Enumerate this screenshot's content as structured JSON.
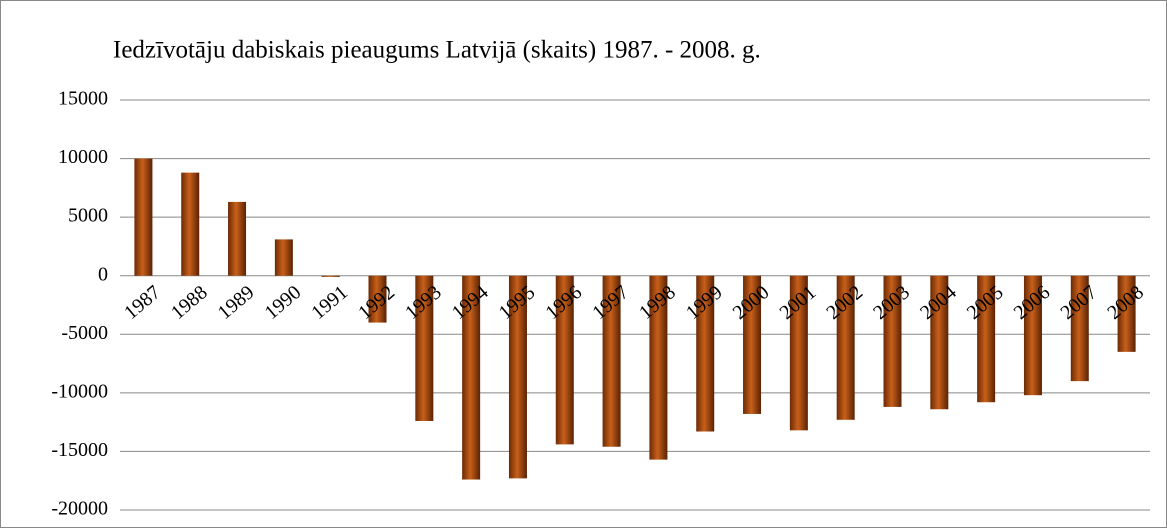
{
  "chart_data": {
    "type": "bar",
    "title": "Iedzīvotāju dabiskais pieaugums Latvijā (skaits) 1987. - 2008. g.",
    "categories": [
      "1987",
      "1988",
      "1989",
      "1990",
      "1991",
      "1992",
      "1993",
      "1994",
      "1995",
      "1996",
      "1997",
      "1998",
      "1999",
      "2000",
      "2001",
      "2002",
      "2003",
      "2004",
      "2005",
      "2006",
      "2007",
      "2008"
    ],
    "values": [
      10000,
      8800,
      6300,
      3100,
      -100,
      -4000,
      -12400,
      -17400,
      -17300,
      -14400,
      -14600,
      -15700,
      -13300,
      -11800,
      -13200,
      -12300,
      -11200,
      -11400,
      -10800,
      -10200,
      -9000,
      -6500
    ],
    "color": "#c8601a",
    "ylim": [
      -20000,
      15000
    ],
    "yticks": [
      -20000,
      -15000,
      -10000,
      -5000,
      0,
      5000,
      10000,
      15000
    ],
    "grid": true
  }
}
